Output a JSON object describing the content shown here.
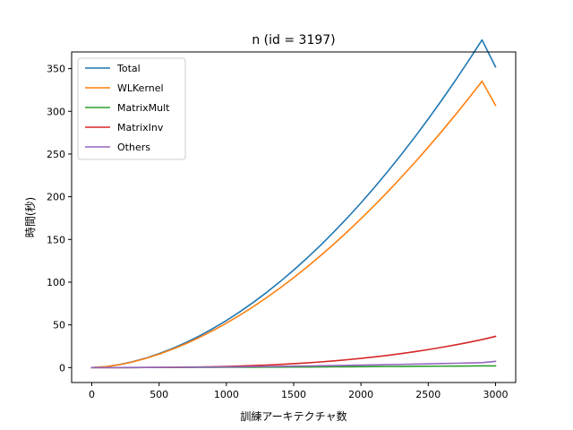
{
  "chart_data": {
    "type": "line",
    "title": "n (id = 3197)",
    "xlabel": "訓練アーキテクチャ数",
    "ylabel": "時間(秒)",
    "xlim": [
      -150,
      3150
    ],
    "ylim": [
      -17.5,
      369.5
    ],
    "xticks": [
      0,
      500,
      1000,
      1500,
      2000,
      2500,
      3000
    ],
    "yticks": [
      0,
      50,
      100,
      150,
      200,
      250,
      300,
      350
    ],
    "grid": false,
    "legend_position": "top-left",
    "x": [
      0,
      100,
      200,
      300,
      400,
      500,
      600,
      700,
      800,
      900,
      1000,
      1100,
      1200,
      1300,
      1400,
      1500,
      1600,
      1700,
      1800,
      1900,
      2000,
      2100,
      2200,
      2300,
      2400,
      2500,
      2600,
      2700,
      2800,
      2900,
      3000
    ],
    "series": [
      {
        "name": "Total",
        "color": "#1f77b4",
        "values": [
          0,
          1.0,
          3.3,
          6.7,
          11.0,
          16.3,
          22.4,
          29.3,
          37.1,
          45.7,
          55.1,
          65.3,
          76.3,
          88.1,
          100.7,
          114.1,
          128.3,
          143.2,
          159.0,
          175.5,
          192.8,
          210.9,
          229.8,
          249.4,
          269.8,
          291.0,
          313.0,
          335.7,
          359.3,
          383.6,
          352.0
        ]
      },
      {
        "name": "WLKernel",
        "color": "#ff7f0e",
        "values": [
          0,
          1.0,
          3.2,
          6.5,
          10.7,
          15.7,
          21.5,
          28.0,
          35.3,
          43.3,
          52.0,
          61.3,
          71.3,
          82.0,
          93.3,
          105.2,
          117.8,
          131.0,
          144.8,
          159.2,
          174.2,
          189.8,
          206.0,
          222.8,
          240.1,
          258.0,
          276.5,
          295.5,
          315.1,
          335.3,
          307.0
        ]
      },
      {
        "name": "MatrixMult",
        "color": "#2ca02c",
        "values": [
          0,
          0.01,
          0.02,
          0.04,
          0.07,
          0.1,
          0.14,
          0.18,
          0.22,
          0.27,
          0.32,
          0.38,
          0.44,
          0.5,
          0.57,
          0.64,
          0.71,
          0.79,
          0.87,
          0.96,
          1.05,
          1.14,
          1.24,
          1.33,
          1.43,
          1.53,
          1.64,
          1.75,
          1.86,
          1.97,
          2.0
        ]
      },
      {
        "name": "MatrixInv",
        "color": "#d62728",
        "values": [
          0,
          0.0,
          0.01,
          0.04,
          0.09,
          0.17,
          0.29,
          0.46,
          0.69,
          0.98,
          1.35,
          1.79,
          2.33,
          2.96,
          3.7,
          4.55,
          5.52,
          6.62,
          7.85,
          9.23,
          10.77,
          12.46,
          14.33,
          16.37,
          18.6,
          21.02,
          23.64,
          26.47,
          29.51,
          32.78,
          36.5
        ]
      },
      {
        "name": "Others",
        "color": "#9467bd",
        "values": [
          0,
          0.02,
          0.05,
          0.1,
          0.16,
          0.23,
          0.32,
          0.42,
          0.53,
          0.66,
          0.8,
          0.95,
          1.11,
          1.29,
          1.48,
          1.68,
          1.89,
          2.12,
          2.36,
          2.61,
          2.87,
          3.15,
          3.44,
          3.74,
          4.05,
          4.37,
          4.71,
          5.06,
          5.42,
          5.79,
          7.3
        ]
      }
    ]
  }
}
